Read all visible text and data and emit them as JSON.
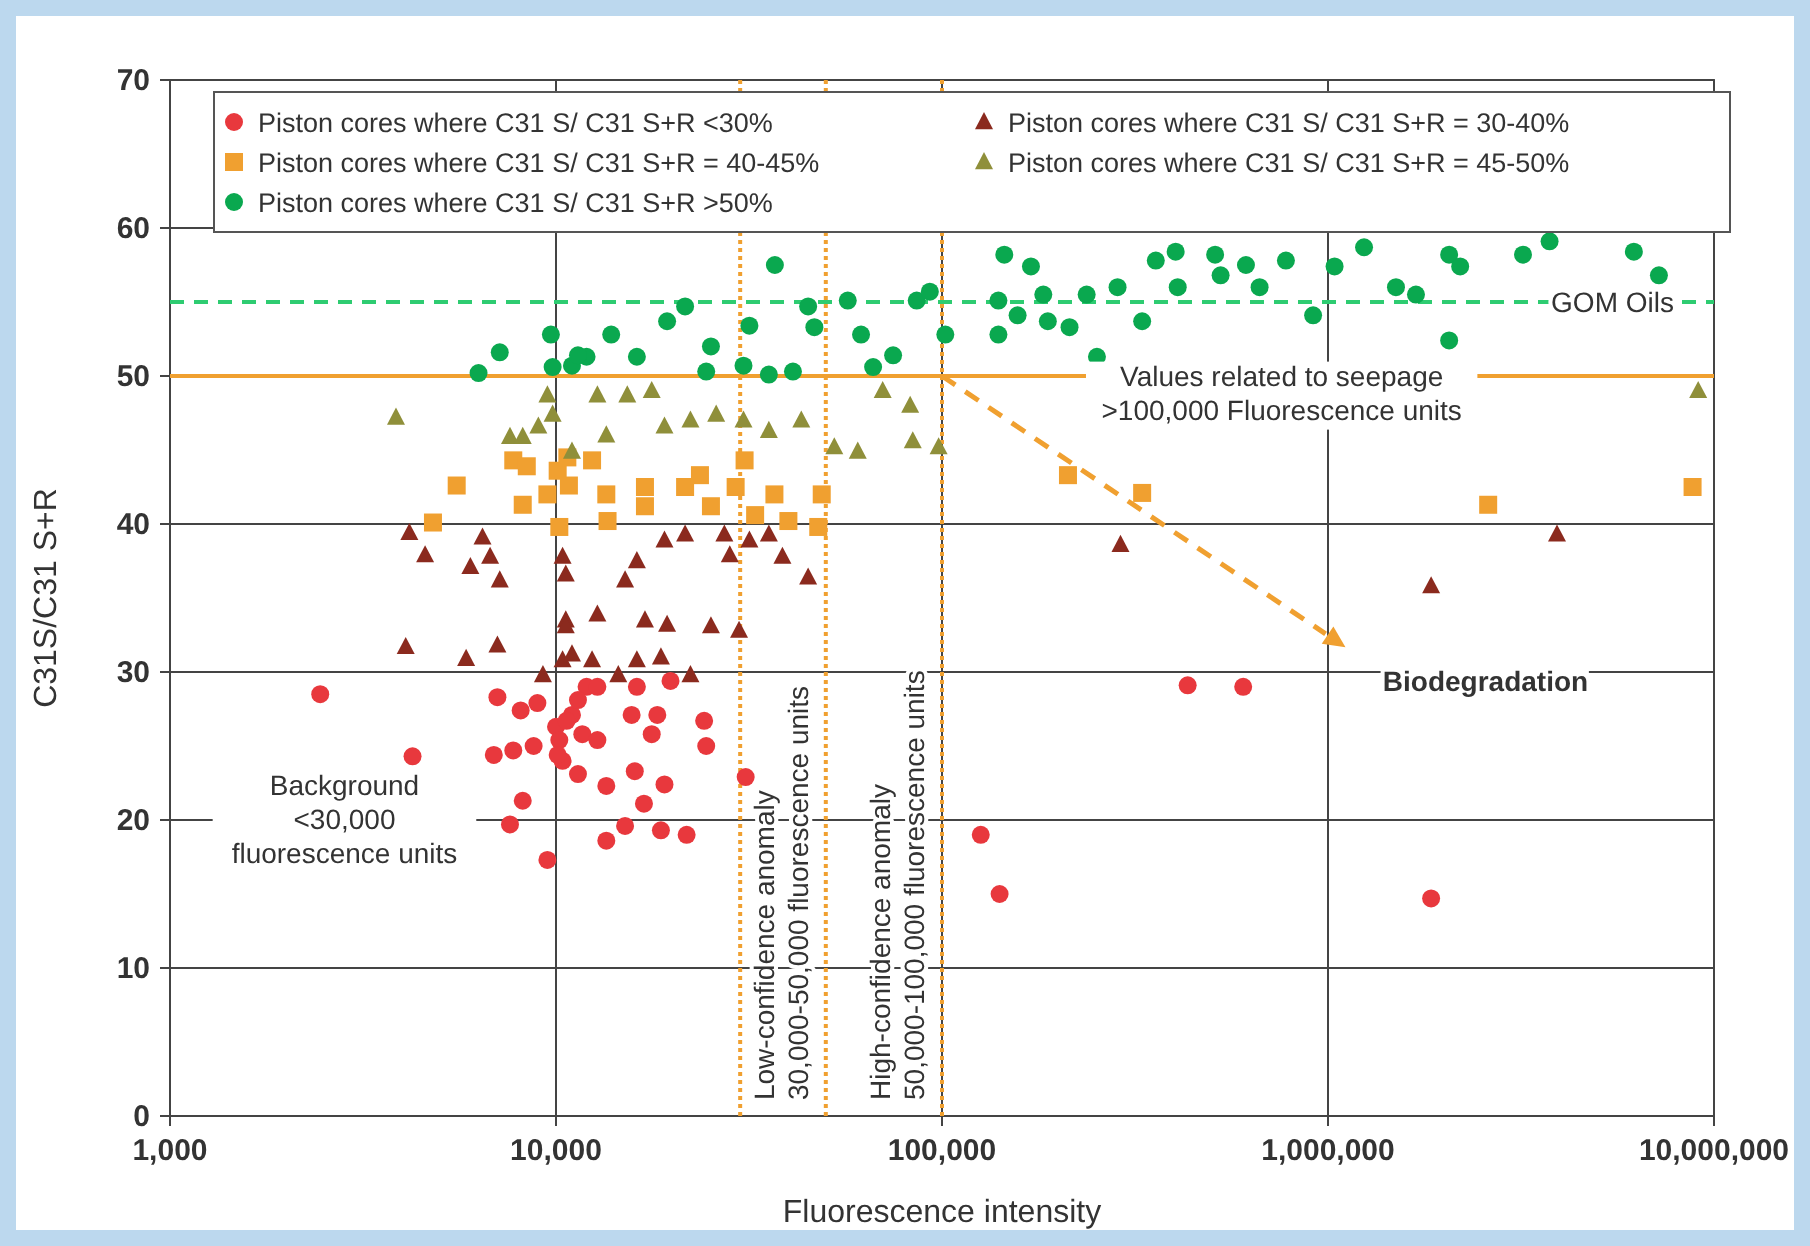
{
  "chart_data": {
    "type": "scatter",
    "xlabel": "Fluorescence intensity",
    "ylabel": "C31S/C31 S+R",
    "log": "x",
    "grid": true,
    "legend": "top",
    "xlim": [
      1000,
      10000000
    ],
    "xticks": [
      {
        "value": 1000,
        "label": "1,000"
      },
      {
        "value": 10000,
        "label": "10,000"
      },
      {
        "value": 100000,
        "label": "100,000"
      },
      {
        "value": 1000000,
        "label": "1,000,000"
      },
      {
        "value": 10000000,
        "label": "10,000,000"
      }
    ],
    "ylim": [
      0,
      70
    ],
    "yticks": [
      0,
      10,
      20,
      30,
      40,
      50,
      60,
      70
    ],
    "series": [
      {
        "name": "Piston cores where C31 S/ C31 S+R <30%",
        "color": "#e8383d",
        "marker": "circle",
        "x": [
          2450,
          4250,
          7050,
          8100,
          8950,
          6900,
          7750,
          8750,
          8200,
          7600,
          9500,
          10000,
          10200,
          10400,
          11400,
          11000,
          12000,
          10650,
          11400,
          12800,
          16200,
          19800,
          11700,
          12800,
          15700,
          17700,
          18300,
          24200,
          24500,
          13500,
          16000,
          19100,
          16900,
          15100,
          18700,
          21800,
          13500,
          10100,
          31000,
          433000,
          603000,
          126000,
          141000,
          1850000
        ],
        "values": [
          28.5,
          24.3,
          28.3,
          27.4,
          27.9,
          24.4,
          24.7,
          25,
          21.3,
          19.7,
          17.3,
          26.3,
          25.4,
          24,
          23.1,
          27.1,
          29,
          26.7,
          28.1,
          29,
          29,
          29.4,
          25.8,
          25.4,
          27.1,
          25.8,
          27.1,
          26.7,
          25,
          22.3,
          23.3,
          22.4,
          21.1,
          19.6,
          19.3,
          19,
          18.6,
          24.4,
          22.9,
          29.1,
          29,
          19,
          15,
          14.7
        ]
      },
      {
        "name": "Piston cores where C31 S/ C31 S+R = 30-40%",
        "color": "#8b2a1e",
        "marker": "triangle",
        "x": [
          4170,
          4580,
          6000,
          6450,
          6750,
          7150,
          4080,
          5850,
          7050,
          9250,
          10400,
          10600,
          10600,
          10400,
          15100,
          16200,
          19100,
          21600,
          27300,
          31700,
          35600,
          38600,
          45000,
          12800,
          10600,
          17000,
          19400,
          25200,
          29800,
          11000,
          14500,
          18700,
          22300,
          12400,
          16200,
          28200,
          290000,
          3920000,
          1850000
        ],
        "values": [
          39.4,
          37.9,
          37.1,
          39.1,
          37.8,
          36.2,
          31.7,
          30.9,
          31.8,
          29.8,
          37.8,
          36.6,
          33.5,
          30.8,
          36.2,
          37.5,
          38.9,
          39.3,
          39.3,
          38.9,
          39.3,
          37.8,
          36.4,
          33.9,
          33.1,
          33.5,
          33.2,
          33.1,
          32.8,
          31.2,
          29.8,
          31,
          29.8,
          30.8,
          30.8,
          37.9,
          38.6,
          39.3,
          35.8
        ]
      },
      {
        "name": "Piston cores where C31 S/ C31 S+R = 40-45%",
        "color": "#f0a030",
        "marker": "square",
        "x": [
          5530,
          4800,
          7750,
          8400,
          8200,
          9500,
          10200,
          10100,
          10800,
          10700,
          12400,
          13500,
          13600,
          17000,
          17000,
          21600,
          23600,
          25200,
          29200,
          30800,
          32800,
          36800,
          40000,
          48800,
          47800,
          212000,
          330000,
          2600000,
          8800000
        ],
        "values": [
          42.6,
          40.1,
          44.3,
          43.9,
          41.3,
          42,
          39.8,
          43.6,
          42.6,
          44.5,
          44.3,
          42,
          40.2,
          42.5,
          41.2,
          42.5,
          43.3,
          41.2,
          42.5,
          44.3,
          40.6,
          42,
          40.2,
          42,
          39.8,
          43.3,
          42.1,
          41.3,
          42.5
        ]
      },
      {
        "name": "Piston cores where C31 S/ C31 S+R = 45-50%",
        "color": "#8f8f3a",
        "marker": "triangle",
        "x": [
          3850,
          7600,
          8200,
          9000,
          9500,
          9800,
          11000,
          12800,
          15300,
          17700,
          13500,
          19100,
          22300,
          26000,
          30600,
          35600,
          43200,
          52600,
          60500,
          70200,
          82700,
          84000,
          98000,
          9100000
        ],
        "values": [
          47.2,
          45.9,
          45.9,
          46.6,
          48.7,
          47.4,
          44.9,
          48.7,
          48.7,
          49,
          46,
          46.6,
          47,
          47.4,
          47,
          46.3,
          47,
          45.2,
          44.9,
          49,
          48,
          45.6,
          45.2,
          49
        ]
      },
      {
        "name": "Piston cores where C31 S/ C31 S+R >50%",
        "color": "#0aa84f",
        "marker": "circle",
        "x": [
          6300,
          7150,
          9700,
          9800,
          11000,
          12000,
          11400,
          13900,
          16200,
          19400,
          21600,
          25200,
          31700,
          24500,
          30600,
          35600,
          41100,
          36900,
          45000,
          46700,
          57000,
          61700,
          66300,
          74700,
          86000,
          93000,
          102000,
          145000,
          170000,
          140000,
          140000,
          157000,
          183000,
          188000,
          214000,
          237000,
          252000,
          285000,
          330000,
          358000,
          408000,
          403000,
          510000,
          527000,
          613000,
          665000,
          778000,
          915000,
          1040000,
          1240000,
          1500000,
          1690000,
          2060000,
          2200000,
          2060000,
          3200000,
          3750000,
          6200000,
          7200000
        ],
        "values": [
          50.2,
          51.6,
          52.8,
          50.6,
          50.7,
          51.3,
          51.4,
          52.8,
          51.3,
          53.7,
          54.7,
          52,
          53.4,
          50.3,
          50.7,
          50.1,
          50.3,
          57.5,
          54.7,
          53.3,
          55.1,
          52.8,
          50.6,
          51.4,
          55.1,
          55.7,
          52.8,
          58.2,
          57.4,
          55.1,
          52.8,
          54.1,
          55.5,
          53.7,
          53.3,
          55.5,
          51.3,
          56,
          53.7,
          57.8,
          56,
          58.4,
          58.2,
          56.8,
          57.5,
          56,
          57.8,
          54.1,
          57.4,
          58.7,
          56,
          55.5,
          58.2,
          57.4,
          52.4,
          58.2,
          59.1,
          58.4,
          56.8
        ]
      }
    ],
    "ref_lines": [
      {
        "axis": "y",
        "value": 55,
        "label": "GOM Oils",
        "color": "#2ecc71",
        "line_style": "dashed"
      },
      {
        "axis": "y",
        "value": 50,
        "color": "#f0a030",
        "line_style": "solid"
      },
      {
        "axis": "x",
        "value": 30000,
        "color": "#f0a030",
        "line_style": "dotted"
      },
      {
        "axis": "x",
        "value": 50000,
        "label": "Low-confidence anomaly\n30,000-50,000 fluorescence units",
        "color": "#f0a030",
        "line_style": "dotted"
      },
      {
        "axis": "x",
        "value": 100000,
        "label": "High-confidence anomaly\n50,000-100,000 fluorescence units",
        "color": "#f0a030",
        "line_style": "dotted"
      }
    ],
    "annotations": [
      "Values related to seepage\n>100,000 Fluorescence units",
      "Background\n<30,000\nfluorescence units",
      "Biodegradation"
    ]
  }
}
